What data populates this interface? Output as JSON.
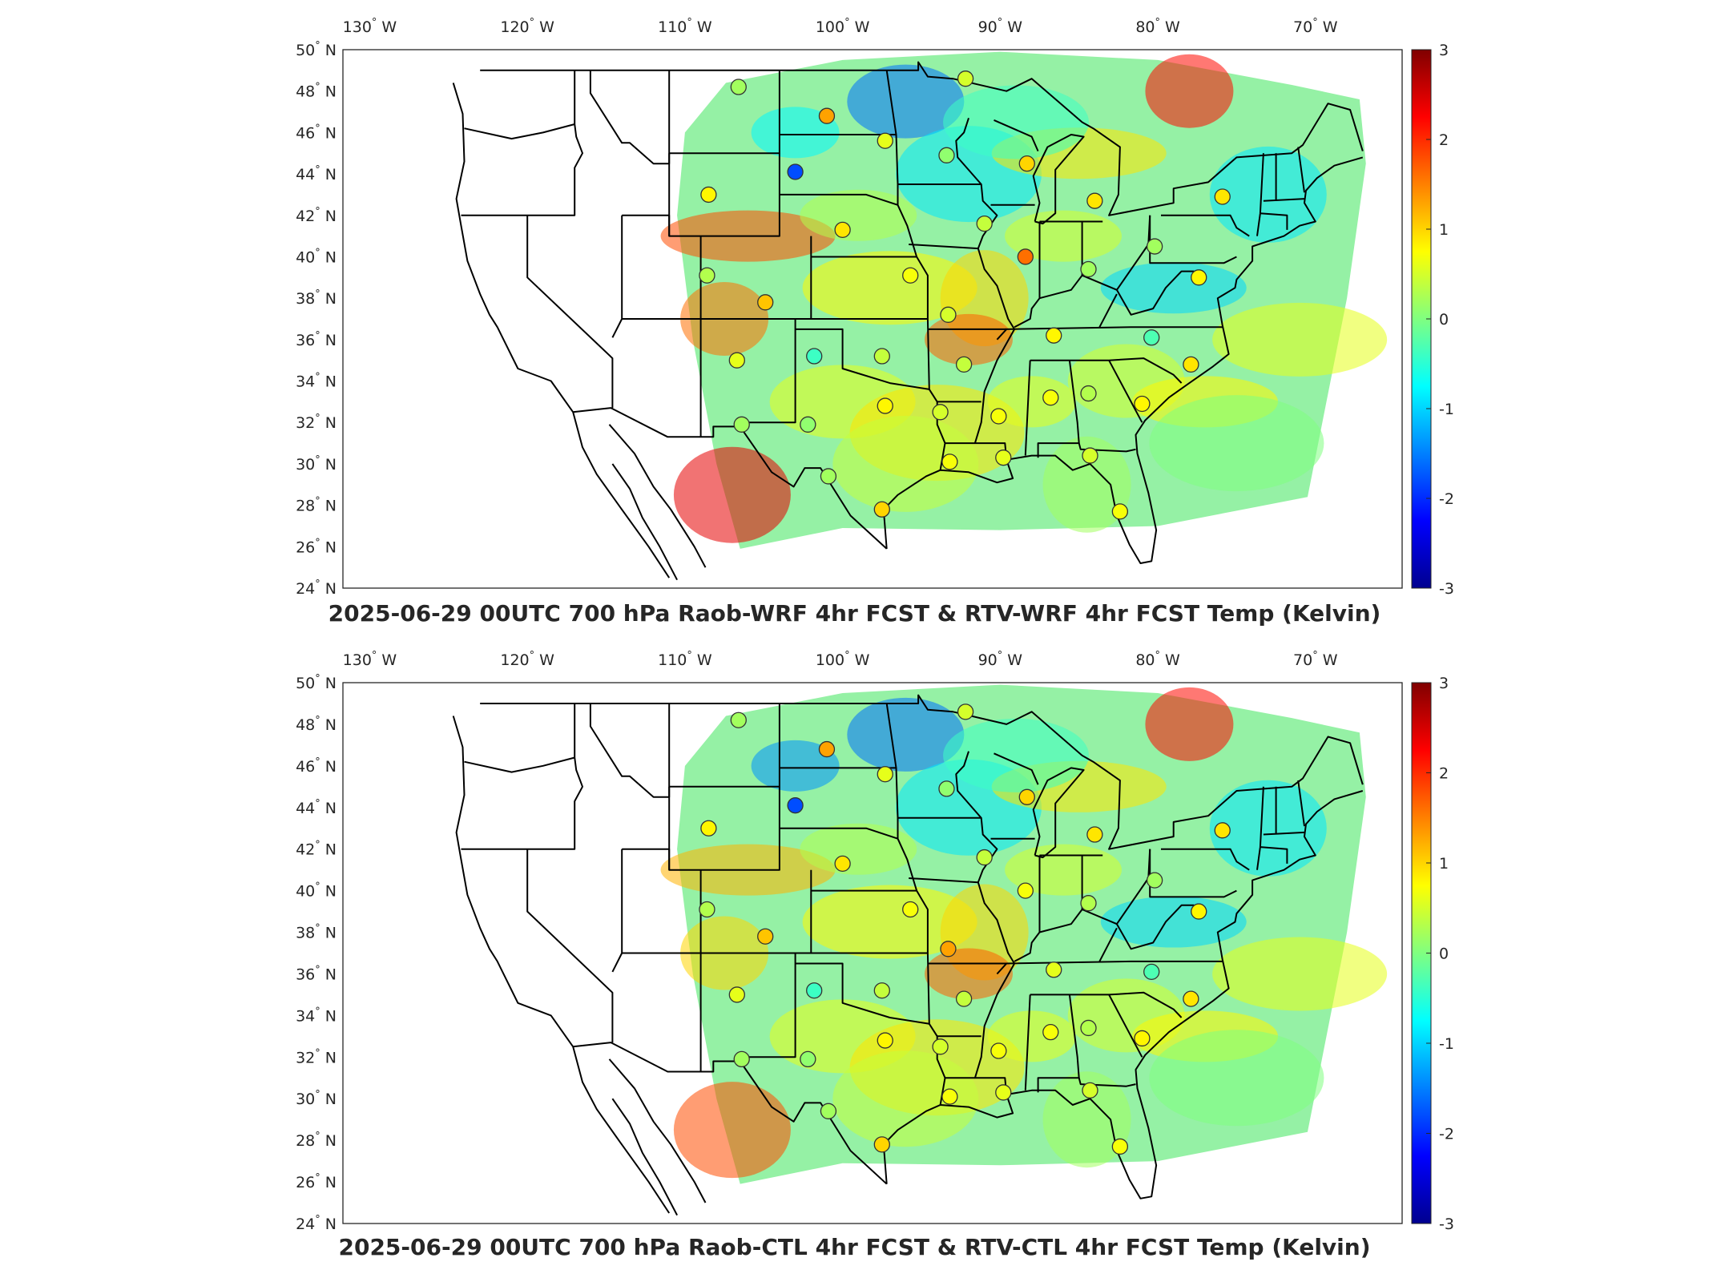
{
  "colors": {
    "colormap": [
      "#00008f",
      "#0000ff",
      "#0080ff",
      "#00ffff",
      "#80ff80",
      "#ffff00",
      "#ff8000",
      "#ff0000",
      "#800000"
    ],
    "state_lines": "#000000",
    "frame": "#262626"
  },
  "panels": [
    {
      "id": "top",
      "title": "2025-06-29 00UTC 700 hPa Raob-WRF 4hr FCST & RTV-WRF 4hr FCST Temp (Kelvin)"
    },
    {
      "id": "bottom",
      "title": "2025-06-29 00UTC 700 hPa Raob-CTL 4hr FCST & RTV-CTL 4hr FCST Temp (Kelvin)"
    }
  ],
  "lon_ticks": [
    {
      "lon": -130,
      "label": "130",
      "hemi": "W"
    },
    {
      "lon": -120,
      "label": "120",
      "hemi": "W"
    },
    {
      "lon": -110,
      "label": "110",
      "hemi": "W"
    },
    {
      "lon": -100,
      "label": "100",
      "hemi": "W"
    },
    {
      "lon": -90,
      "label": "90",
      "hemi": "W"
    },
    {
      "lon": -80,
      "label": "80",
      "hemi": "W"
    },
    {
      "lon": -70,
      "label": "70",
      "hemi": "W"
    }
  ],
  "lat_ticks": [
    {
      "lat": 50,
      "label": "50",
      "hemi": "N"
    },
    {
      "lat": 48,
      "label": "48",
      "hemi": "N"
    },
    {
      "lat": 46,
      "label": "46",
      "hemi": "N"
    },
    {
      "lat": 44,
      "label": "44",
      "hemi": "N"
    },
    {
      "lat": 42,
      "label": "42",
      "hemi": "N"
    },
    {
      "lat": 40,
      "label": "40",
      "hemi": "N"
    },
    {
      "lat": 38,
      "label": "38",
      "hemi": "N"
    },
    {
      "lat": 36,
      "label": "36",
      "hemi": "N"
    },
    {
      "lat": 34,
      "label": "34",
      "hemi": "N"
    },
    {
      "lat": 32,
      "label": "32",
      "hemi": "N"
    },
    {
      "lat": 30,
      "label": "30",
      "hemi": "N"
    },
    {
      "lat": 28,
      "label": "28",
      "hemi": "N"
    },
    {
      "lat": 26,
      "label": "26",
      "hemi": "N"
    },
    {
      "lat": 24,
      "label": "24",
      "hemi": "N"
    }
  ],
  "colorbar": {
    "min": -3,
    "max": 3,
    "ticks": [
      "3",
      "2",
      "1",
      "0",
      "-1",
      "-2",
      "-3"
    ]
  },
  "raob_stations": [
    {
      "lon": -106.6,
      "lat": 48.2,
      "v_top": 0.2,
      "v_bot": 0.2
    },
    {
      "lon": -101.0,
      "lat": 46.8,
      "v_top": 1.3,
      "v_bot": 1.3
    },
    {
      "lon": -97.3,
      "lat": 45.6,
      "v_top": 0.6,
      "v_bot": 0.6
    },
    {
      "lon": -93.4,
      "lat": 44.9,
      "v_top": 0.1,
      "v_bot": 0.1
    },
    {
      "lon": -92.2,
      "lat": 48.6,
      "v_top": 0.5,
      "v_bot": 0.5
    },
    {
      "lon": -103.0,
      "lat": 44.1,
      "v_top": -1.8,
      "v_bot": -1.8
    },
    {
      "lon": -108.5,
      "lat": 43.0,
      "v_top": 0.8,
      "v_bot": 0.8
    },
    {
      "lon": -100.0,
      "lat": 41.3,
      "v_top": 0.9,
      "v_bot": 0.9
    },
    {
      "lon": -91.0,
      "lat": 41.6,
      "v_top": 0.4,
      "v_bot": 0.4
    },
    {
      "lon": -88.3,
      "lat": 44.5,
      "v_top": 1.0,
      "v_bot": 1.0
    },
    {
      "lon": -84.0,
      "lat": 42.7,
      "v_top": 0.9,
      "v_bot": 0.9
    },
    {
      "lon": -80.2,
      "lat": 40.5,
      "v_top": 0.2,
      "v_bot": 0.2
    },
    {
      "lon": -75.9,
      "lat": 42.9,
      "v_top": 0.9,
      "v_bot": 0.9
    },
    {
      "lon": -77.4,
      "lat": 39.0,
      "v_top": 0.8,
      "v_bot": 0.8
    },
    {
      "lon": -88.4,
      "lat": 40.0,
      "v_top": 1.6,
      "v_bot": 0.7
    },
    {
      "lon": -84.4,
      "lat": 39.4,
      "v_top": 0.2,
      "v_bot": 0.3
    },
    {
      "lon": -108.6,
      "lat": 39.1,
      "v_top": 0.3,
      "v_bot": 0.3
    },
    {
      "lon": -104.9,
      "lat": 37.8,
      "v_top": 1.1,
      "v_bot": 1.1
    },
    {
      "lon": -95.7,
      "lat": 39.1,
      "v_top": 0.7,
      "v_bot": 0.7
    },
    {
      "lon": -93.3,
      "lat": 37.2,
      "v_top": 0.5,
      "v_bot": 1.3
    },
    {
      "lon": -86.6,
      "lat": 36.2,
      "v_top": 0.8,
      "v_bot": 0.6
    },
    {
      "lon": -80.4,
      "lat": 36.1,
      "v_top": -0.3,
      "v_bot": -0.3
    },
    {
      "lon": -106.7,
      "lat": 35.0,
      "v_top": 0.6,
      "v_bot": 0.6
    },
    {
      "lon": -101.8,
      "lat": 35.2,
      "v_top": -0.4,
      "v_bot": -0.4
    },
    {
      "lon": -97.5,
      "lat": 35.2,
      "v_top": 0.4,
      "v_bot": 0.4
    },
    {
      "lon": -92.3,
      "lat": 34.8,
      "v_top": 0.4,
      "v_bot": 0.4
    },
    {
      "lon": -86.8,
      "lat": 33.2,
      "v_top": 0.7,
      "v_bot": 0.7
    },
    {
      "lon": -84.4,
      "lat": 33.4,
      "v_top": 0.3,
      "v_bot": 0.3
    },
    {
      "lon": -81.0,
      "lat": 32.9,
      "v_top": 0.8,
      "v_bot": 0.8
    },
    {
      "lon": -77.9,
      "lat": 34.8,
      "v_top": 0.9,
      "v_bot": 0.9
    },
    {
      "lon": -102.2,
      "lat": 31.9,
      "v_top": 0.1,
      "v_bot": 0.1
    },
    {
      "lon": -106.4,
      "lat": 31.9,
      "v_top": 0.2,
      "v_bot": 0.2
    },
    {
      "lon": -97.3,
      "lat": 32.8,
      "v_top": 0.8,
      "v_bot": 0.8
    },
    {
      "lon": -93.8,
      "lat": 32.5,
      "v_top": 0.5,
      "v_bot": 0.5
    },
    {
      "lon": -90.1,
      "lat": 32.3,
      "v_top": 0.7,
      "v_bot": 0.7
    },
    {
      "lon": -100.9,
      "lat": 29.4,
      "v_top": 0.2,
      "v_bot": 0.2
    },
    {
      "lon": -97.5,
      "lat": 27.8,
      "v_top": 1.0,
      "v_bot": 1.0
    },
    {
      "lon": -93.2,
      "lat": 30.1,
      "v_top": 0.7,
      "v_bot": 0.7
    },
    {
      "lon": -89.8,
      "lat": 30.3,
      "v_top": 0.6,
      "v_bot": 0.6
    },
    {
      "lon": -84.3,
      "lat": 30.4,
      "v_top": 0.5,
      "v_bot": 0.5
    },
    {
      "lon": -82.4,
      "lat": 27.7,
      "v_top": 0.7,
      "v_bot": 0.7
    }
  ]
}
